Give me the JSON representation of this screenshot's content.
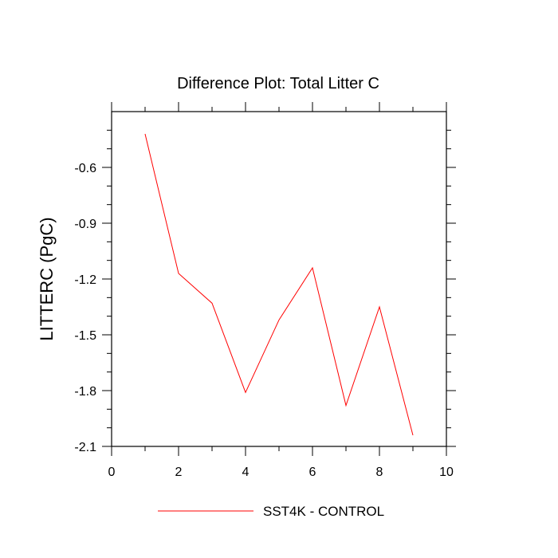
{
  "chart_data": {
    "type": "line",
    "title": "Difference Plot: Total Litter C",
    "xlabel": "",
    "ylabel": "LITTERC  (PgC)",
    "xlim": [
      0,
      10
    ],
    "ylim": [
      -2.1,
      -0.3
    ],
    "x_ticks": [
      0,
      2,
      4,
      6,
      8,
      10
    ],
    "y_ticks": [
      -2.1,
      -1.8,
      -1.5,
      -1.2,
      -0.9,
      -0.6
    ],
    "y_tick_labels": [
      "-2.1",
      "-1.8",
      "-1.5",
      "-1.2",
      "-0.9",
      "-0.6"
    ],
    "legend_position": "bottom-center",
    "series": [
      {
        "name": "SST4K - CONTROL",
        "color": "#ff0000",
        "x": [
          1,
          2,
          3,
          4,
          5,
          6,
          7,
          8,
          9
        ],
        "values": [
          -0.42,
          -1.17,
          -1.33,
          -1.81,
          -1.42,
          -1.14,
          -1.88,
          -1.35,
          -2.04
        ]
      }
    ]
  }
}
